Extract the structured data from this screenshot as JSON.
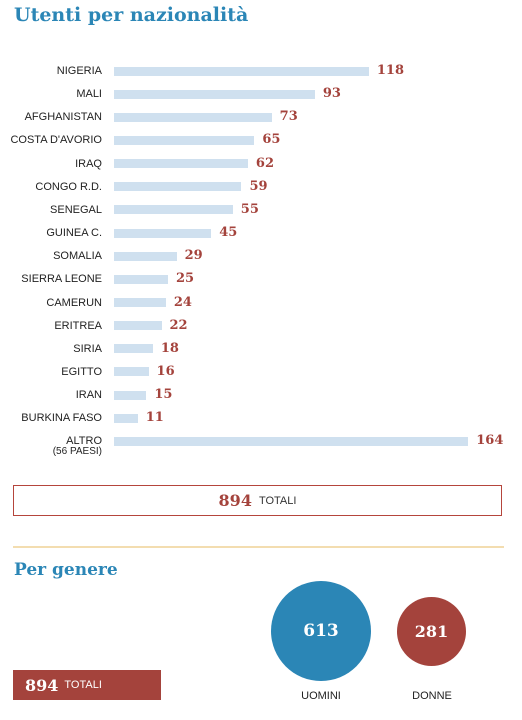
{
  "title": "Utenti per nazionalità",
  "chart_data": {
    "type": "bar",
    "orientation": "horizontal",
    "title": "Utenti per nazionalità",
    "categories": [
      "NIGERIA",
      "MALI",
      "AFGHANISTAN",
      "COSTA D'AVORIO",
      "IRAQ",
      "CONGO R.D.",
      "SENEGAL",
      "GUINEA C.",
      "SOMALIA",
      "SIERRA LEONE",
      "CAMERUN",
      "ERITREA",
      "SIRIA",
      "EGITTO",
      "IRAN",
      "BURKINA FASO",
      "ALTRO"
    ],
    "category_notes": {
      "ALTRO": "(56 PAESI)"
    },
    "values": [
      118,
      93,
      73,
      65,
      62,
      59,
      55,
      45,
      29,
      25,
      24,
      22,
      18,
      16,
      15,
      11,
      164
    ],
    "colors": {
      "bar": "#cfe0ef",
      "value_label": "#a4433c"
    }
  },
  "totals": {
    "value": "894",
    "label": "TOTALI"
  },
  "gender": {
    "title": "Per genere",
    "men": {
      "value": "613",
      "label": "UOMINI",
      "color": "#2b86b6"
    },
    "women": {
      "value": "281",
      "label": "DONNE",
      "color": "#a4433c"
    },
    "total": {
      "value": "894",
      "label": "TOTALI"
    }
  }
}
